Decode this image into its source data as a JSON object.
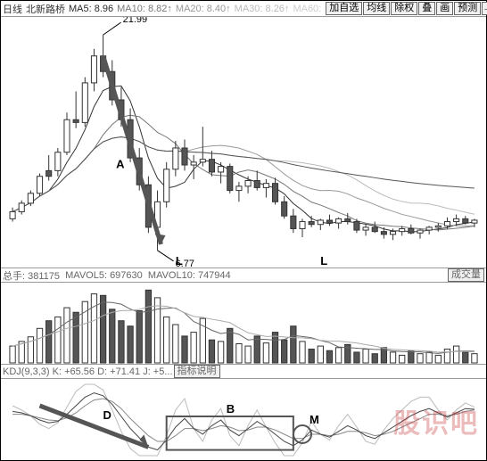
{
  "topbar": {
    "timeframe": "日线",
    "stock": "北新路桥",
    "MAs": [
      {
        "label": "MA5",
        "value": "8.96",
        "color": "#2a2a2a"
      },
      {
        "label": "MA10",
        "value": "8.82↑",
        "color": "#777"
      },
      {
        "label": "MA20",
        "value": "8.40↑",
        "color": "#999"
      },
      {
        "label": "MA30",
        "value": "8.26↑",
        "color": "#bbb"
      },
      {
        "label": "MA60",
        "value": "",
        "color": "#ccc"
      }
    ],
    "buttons": [
      "加自选",
      "均线",
      "除权",
      "叠",
      "画",
      "预测"
    ]
  },
  "price": {
    "type": "candlestick",
    "ylim": [
      6,
      22.5
    ],
    "high_label": "21.99",
    "low_label": "6.77",
    "markers": {
      "A": "A",
      "L1": "L",
      "L2": "L"
    },
    "candles": [
      [
        9.0,
        9.8,
        8.8,
        9.5,
        1
      ],
      [
        9.5,
        10.3,
        9.3,
        10.1,
        1
      ],
      [
        10.1,
        11.0,
        9.9,
        10.8,
        1
      ],
      [
        10.8,
        12.2,
        10.6,
        12.0,
        1
      ],
      [
        12.0,
        13.5,
        11.7,
        12.4,
        0
      ],
      [
        12.4,
        14.0,
        12.0,
        13.7,
        1
      ],
      [
        13.7,
        16.5,
        13.5,
        16.0,
        1
      ],
      [
        16.0,
        18.0,
        15.4,
        15.8,
        0
      ],
      [
        15.8,
        19.0,
        15.5,
        18.6,
        1
      ],
      [
        18.6,
        21.0,
        18.0,
        20.5,
        1
      ],
      [
        20.5,
        21.99,
        19.0,
        19.4,
        0
      ],
      [
        19.4,
        20.2,
        17.0,
        17.4,
        0
      ],
      [
        17.4,
        18.3,
        15.5,
        16.0,
        0
      ],
      [
        16.0,
        16.8,
        13.0,
        13.3,
        0
      ],
      [
        13.3,
        14.0,
        11.0,
        11.4,
        0
      ],
      [
        11.4,
        12.0,
        8.0,
        8.4,
        0
      ],
      [
        8.4,
        11.0,
        6.77,
        10.2,
        1
      ],
      [
        10.2,
        13.0,
        9.8,
        12.5,
        1
      ],
      [
        12.5,
        14.5,
        12.0,
        14.0,
        1
      ],
      [
        14.0,
        14.6,
        12.4,
        12.8,
        0
      ],
      [
        12.8,
        13.5,
        11.8,
        13.0,
        1
      ],
      [
        13.0,
        15.5,
        12.7,
        13.2,
        1
      ],
      [
        13.2,
        13.8,
        12.0,
        12.3,
        0
      ],
      [
        12.3,
        13.0,
        11.5,
        12.7,
        1
      ],
      [
        12.7,
        12.9,
        10.8,
        11.0,
        0
      ],
      [
        11.0,
        11.6,
        10.2,
        11.3,
        1
      ],
      [
        11.3,
        12.0,
        10.8,
        11.7,
        1
      ],
      [
        11.7,
        12.4,
        11.0,
        11.2,
        0
      ],
      [
        11.2,
        11.8,
        10.5,
        11.5,
        1
      ],
      [
        11.5,
        11.9,
        10.0,
        10.2,
        0
      ],
      [
        10.2,
        10.6,
        9.0,
        9.2,
        0
      ],
      [
        9.2,
        9.7,
        8.0,
        8.3,
        0
      ],
      [
        8.3,
        9.0,
        7.7,
        8.8,
        1
      ],
      [
        8.8,
        9.2,
        8.4,
        8.6,
        0
      ],
      [
        8.6,
        9.0,
        8.2,
        8.9,
        1
      ],
      [
        8.9,
        9.3,
        8.5,
        8.7,
        0
      ],
      [
        8.7,
        9.1,
        8.3,
        9.0,
        1
      ],
      [
        9.0,
        9.4,
        8.6,
        8.8,
        0
      ],
      [
        8.8,
        9.0,
        8.0,
        8.2,
        0
      ],
      [
        8.2,
        8.6,
        7.8,
        8.4,
        1
      ],
      [
        8.4,
        8.8,
        8.0,
        8.1,
        0
      ],
      [
        8.1,
        8.4,
        7.6,
        7.9,
        0
      ],
      [
        7.9,
        8.3,
        7.5,
        8.1,
        1
      ],
      [
        8.1,
        8.5,
        7.8,
        8.3,
        1
      ],
      [
        8.3,
        8.6,
        7.9,
        8.0,
        0
      ],
      [
        8.0,
        8.3,
        7.6,
        8.2,
        1
      ],
      [
        8.2,
        8.5,
        7.9,
        8.4,
        1
      ],
      [
        8.4,
        8.7,
        8.1,
        8.5,
        1
      ],
      [
        8.5,
        9.1,
        8.3,
        8.8,
        1
      ],
      [
        8.8,
        9.3,
        8.5,
        9.0,
        1
      ],
      [
        9.0,
        9.2,
        8.6,
        8.7,
        0
      ],
      [
        8.7,
        9.0,
        8.4,
        8.9,
        1
      ]
    ],
    "ma5_color": "#333",
    "ma10_color": "#777",
    "ma20_color": "#999",
    "ma30_color": "#bbb",
    "ma60_color": "#555"
  },
  "volume": {
    "label_total": "总手: 381175",
    "mavol5": "MAVOL5: 697630",
    "mavol10": "MAVOL10: 747944",
    "btn": "成交量",
    "ylim": [
      0,
      100
    ],
    "bars": [
      22,
      28,
      34,
      45,
      55,
      60,
      72,
      66,
      80,
      90,
      88,
      70,
      55,
      48,
      68,
      95,
      85,
      60,
      50,
      35,
      40,
      58,
      30,
      28,
      45,
      25,
      22,
      35,
      26,
      40,
      30,
      48,
      28,
      18,
      22,
      16,
      20,
      24,
      14,
      18,
      12,
      20,
      14,
      10,
      16,
      12,
      14,
      10,
      18,
      22,
      14,
      12
    ],
    "mavol5_color": "#666",
    "mavol10_color": "#aaa"
  },
  "kdj": {
    "label": "KDJ(9,3,3)",
    "K": "K: +65.56",
    "D": "D: +71.41",
    "J": "J: +5...",
    "btn": "指标说明",
    "ylim": [
      0,
      100
    ],
    "markers": {
      "D": "D",
      "B": "B",
      "M": "M"
    },
    "k_color": "#444",
    "d_color": "#888",
    "j_color": "#bbb",
    "series_k": [
      62,
      60,
      56,
      50,
      46,
      48,
      58,
      70,
      82,
      88,
      84,
      72,
      55,
      38,
      25,
      12,
      8,
      22,
      40,
      52,
      38,
      30,
      42,
      50,
      36,
      28,
      38,
      48,
      40,
      30,
      20,
      14,
      22,
      36,
      30,
      26,
      34,
      42,
      36,
      28,
      24,
      32,
      40,
      48,
      56,
      62,
      66,
      60,
      54,
      60,
      66,
      65
    ],
    "series_d": [
      58,
      58,
      56,
      53,
      50,
      49,
      53,
      60,
      70,
      78,
      80,
      76,
      66,
      52,
      40,
      28,
      20,
      20,
      28,
      38,
      38,
      35,
      38,
      42,
      40,
      35,
      36,
      40,
      40,
      36,
      30,
      24,
      24,
      30,
      30,
      28,
      30,
      34,
      34,
      32,
      28,
      30,
      34,
      40,
      46,
      52,
      58,
      58,
      56,
      58,
      62,
      64
    ],
    "series_j": [
      70,
      64,
      56,
      44,
      38,
      46,
      68,
      90,
      100,
      100,
      92,
      64,
      34,
      10,
      0,
      0,
      0,
      28,
      64,
      80,
      38,
      20,
      50,
      66,
      28,
      14,
      42,
      64,
      40,
      18,
      0,
      0,
      18,
      48,
      30,
      22,
      42,
      58,
      40,
      20,
      16,
      36,
      52,
      64,
      76,
      82,
      82,
      64,
      50,
      64,
      74,
      68
    ]
  },
  "watermark": "股识吧",
  "colors": {
    "border": "#000",
    "grid": "#999",
    "text": "#333",
    "btn_bg": "#f0f0f0"
  }
}
